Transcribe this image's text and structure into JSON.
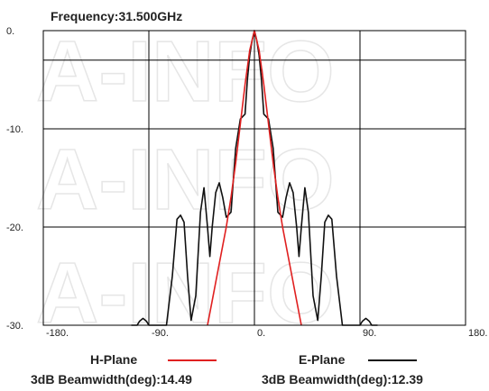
{
  "chart_data": {
    "type": "line",
    "title": "Frequency:31.500GHz",
    "xlim": [
      -180,
      180
    ],
    "ylim": [
      -30,
      0
    ],
    "x_ticks": [
      -180,
      -90,
      0,
      90,
      180
    ],
    "x_tick_labels": [
      "-180.",
      "-90.",
      "0.",
      "90.",
      "180."
    ],
    "y_ticks": [
      0,
      -10,
      -20,
      -30
    ],
    "y_tick_labels": [
      "0.",
      "-10.",
      "-20.",
      "-30."
    ],
    "grid": true,
    "watermark": "A-INFO",
    "series": [
      {
        "name": "H-Plane",
        "color": "#e02020",
        "beamwidth_label": "3dB Beamwidth(deg):14.49",
        "x": [
          -40,
          -36,
          -32,
          -28,
          -24,
          -20,
          -16,
          -12,
          -8,
          -4,
          0,
          4,
          8,
          12,
          16,
          20,
          24,
          28,
          32,
          36,
          40
        ],
        "y": [
          -30,
          -27.5,
          -25,
          -22.5,
          -20,
          -17,
          -13.5,
          -9.5,
          -5.5,
          -2,
          0,
          -2,
          -5.5,
          -9.5,
          -13.5,
          -17,
          -20,
          -22.5,
          -25,
          -27.5,
          -30
        ]
      },
      {
        "name": "E-Plane",
        "color": "#111111",
        "beamwidth_label": "3dB Beamwidth(deg):12.39",
        "x": [
          -105,
          -100,
          -98,
          -95,
          -92,
          -90,
          -86,
          -75,
          -70,
          -66,
          -63,
          -60,
          -57,
          -54,
          -50,
          -46,
          -43,
          -40,
          -38,
          -36,
          -33,
          -30,
          -27,
          -24,
          -20,
          -16,
          -12,
          -8,
          -6,
          -4,
          -2,
          0,
          2,
          4,
          6,
          8,
          12,
          16,
          20,
          24,
          27,
          30,
          33,
          36,
          38,
          40,
          43,
          46,
          50,
          54,
          57,
          60,
          63,
          66,
          70,
          75,
          86,
          90,
          92,
          95,
          98,
          100,
          105
        ],
        "y": [
          -30,
          -30,
          -29.6,
          -29.3,
          -29.6,
          -30,
          -30,
          -30,
          -25,
          -19.2,
          -18.8,
          -19.5,
          -25,
          -29.5,
          -27,
          -18.5,
          -16,
          -20,
          -23,
          -20,
          -16.5,
          -15.5,
          -17,
          -19,
          -18.5,
          -12,
          -9,
          -8.5,
          -5,
          -2.5,
          -1,
          0,
          -1,
          -2.5,
          -5,
          -8.5,
          -9,
          -12,
          -18.5,
          -19,
          -17,
          -15.5,
          -16.5,
          -20,
          -23,
          -20,
          -16,
          -18.5,
          -27,
          -29.5,
          -25,
          -19.5,
          -18.8,
          -19.2,
          -25,
          -30,
          -30,
          -30,
          -29.6,
          -29.3,
          -29.6,
          -30,
          -30
        ]
      }
    ]
  }
}
